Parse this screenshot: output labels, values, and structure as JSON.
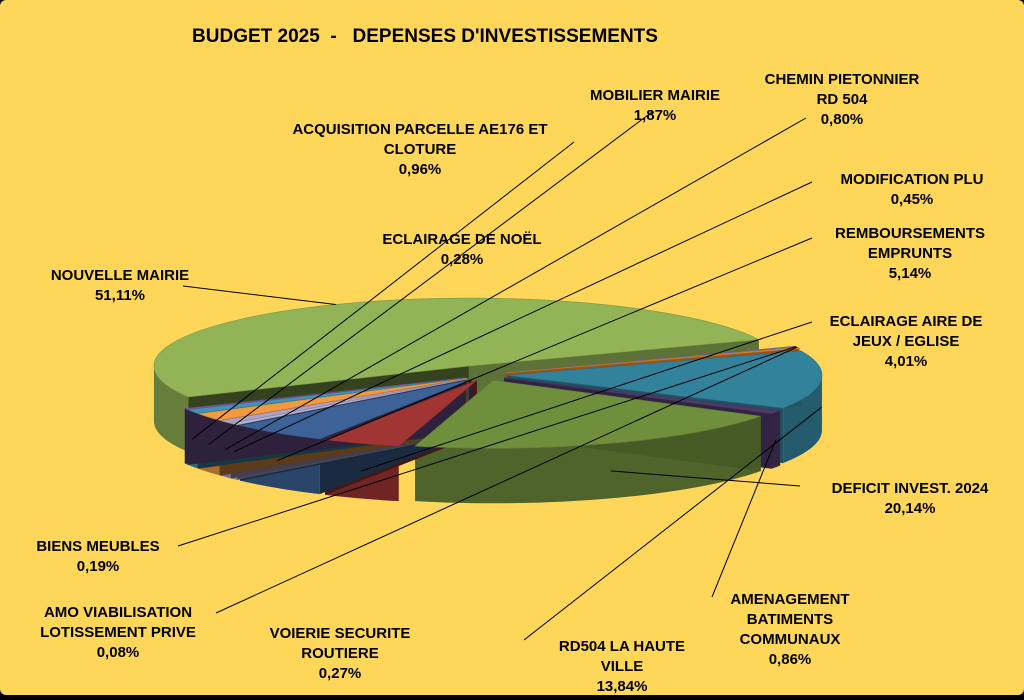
{
  "chart_data": {
    "type": "pie",
    "title": "BUDGET 2025  -   DEPENSES D'INVESTISSEMENTS",
    "three_d": true,
    "exploded": true,
    "background": "#fed65a",
    "series": [
      {
        "name": "",
        "slices": [
          {
            "label": [
              "NOUVELLE MAIRIE"
            ],
            "pct": "51,11%",
            "value": 51.11,
            "color": "#92b356"
          },
          {
            "label": [
              "BIENS MEUBLES"
            ],
            "pct": "0,19%",
            "value": 0.19,
            "color": "#8c62a4"
          },
          {
            "label": [
              "AMO VIABILISATION",
              "LOTISSEMENT PRIVE"
            ],
            "pct": "0,08%",
            "value": 0.08,
            "color": "#4aa7c1"
          },
          {
            "label": [
              "VOIERIE SECURITE",
              "ROUTIERE"
            ],
            "pct": "0,27%",
            "value": 0.27,
            "color": "#e4852d"
          },
          {
            "label": [
              "RD504 LA HAUTE",
              "VILLE"
            ],
            "pct": "13,84%",
            "value": 13.84,
            "color": "#33829c"
          },
          {
            "label": [
              "AMENAGEMENT",
              "BATIMENTS",
              "COMMUNAUX"
            ],
            "pct": "0,86%",
            "value": 0.86,
            "color": "#4e3a6a"
          },
          {
            "label": [
              "DEFICIT INVEST. 2024"
            ],
            "pct": "20,14%",
            "value": 20.14,
            "color": "#6f8f3c"
          },
          {
            "label": [
              "ECLAIRAGE AIRE DE",
              "JEUX / EGLISE"
            ],
            "pct": "4,01%",
            "value": 4.01,
            "color": "#a03533"
          },
          {
            "label": [
              "REMBOURSEMENTS",
              "EMPRUNTS"
            ],
            "pct": "5,14%",
            "value": 5.14,
            "color": "#3c6298"
          },
          {
            "label": [
              "MODIFICATION PLU"
            ],
            "pct": "0,45%",
            "value": 0.45,
            "color": "#a8b8d6"
          },
          {
            "label": [
              "CHEMIN PIETONNIER",
              "RD 504"
            ],
            "pct": "0,80%",
            "value": 0.8,
            "color": "#b29ec2"
          },
          {
            "label": [
              "MOBILIER MAIRIE"
            ],
            "pct": "1,87%",
            "value": 1.87,
            "color": "#f29b3e"
          },
          {
            "label": [
              "ACQUISITION PARCELLE AE176 ET",
              "CLOTURE"
            ],
            "pct": "0,96%",
            "value": 0.96,
            "color": "#3f94b8"
          },
          {
            "label": [
              "ECLAIRAGE DE NOËL"
            ],
            "pct": "0,28%",
            "value": 0.28,
            "color": "#7c59a0"
          }
        ]
      }
    ]
  }
}
